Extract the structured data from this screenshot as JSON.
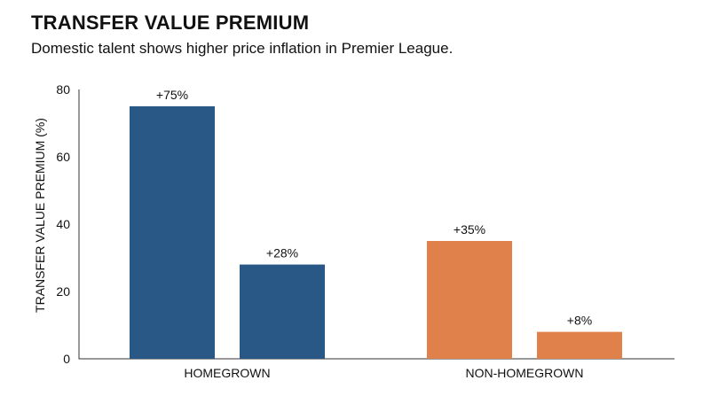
{
  "title": "TRANSFER VALUE PREMIUM",
  "subtitle": "Domestic talent shows higher price inflation in Premier League.",
  "colors": {
    "blue": "#2a5886",
    "orange": "#e0804a",
    "axis": "#333333"
  },
  "chart_data": {
    "type": "bar",
    "title": "TRANSFER VALUE PREMIUM",
    "subtitle": "Domestic talent shows higher price inflation in Premier League.",
    "xlabel": "",
    "ylabel": "TRANSFER VALUE PREMIUM (%)",
    "ylim": [
      0,
      80
    ],
    "yticks": [
      0,
      20,
      40,
      60,
      80
    ],
    "grid": false,
    "legend": "none",
    "groups": [
      {
        "category": "HOMEGROWN",
        "bars": [
          {
            "value": 75,
            "label": "+75%",
            "color": "#2a5886"
          },
          {
            "value": 28,
            "label": "+28%",
            "color": "#2a5886"
          }
        ]
      },
      {
        "category": "NON-HOMEGROWN",
        "bars": [
          {
            "value": 35,
            "label": "+35%",
            "color": "#e0804a"
          },
          {
            "value": 8,
            "label": "+8%",
            "color": "#e0804a"
          }
        ]
      }
    ]
  }
}
